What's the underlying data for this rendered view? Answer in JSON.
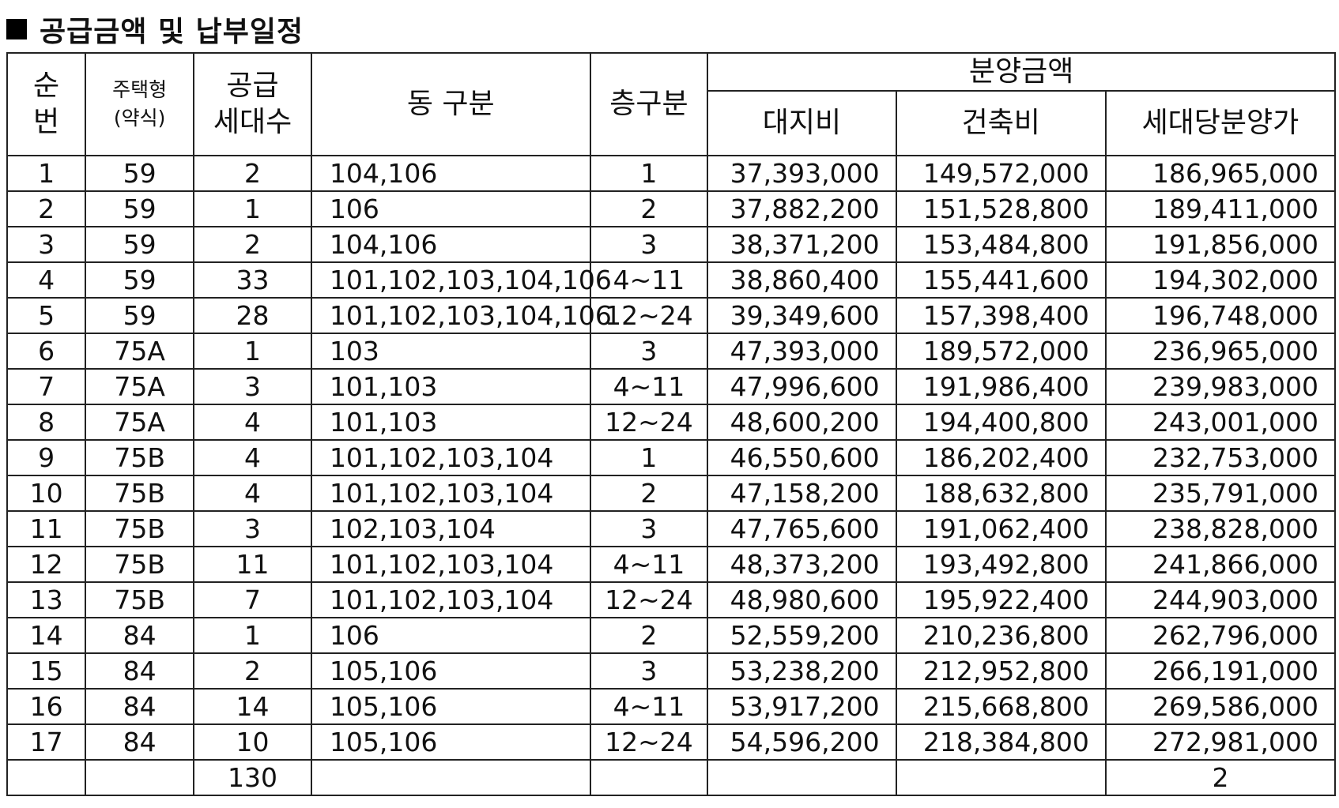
{
  "title": "공급금액 및 납부일정",
  "headers": {
    "seq": [
      "순",
      "번"
    ],
    "type": [
      "주택형",
      "(약식)"
    ],
    "units": [
      "공급",
      "세대수"
    ],
    "building": "동 구분",
    "floor": "층구분",
    "price_group": "분양금액",
    "land": "대지비",
    "construction": "건축비",
    "total": "세대당분양가"
  },
  "rows": [
    {
      "seq": "1",
      "type": "59",
      "units": "2",
      "buildings": "104,106",
      "floor": "1",
      "land": "37,393,000",
      "construction": "149,572,000",
      "total": "186,965,000"
    },
    {
      "seq": "2",
      "type": "59",
      "units": "1",
      "buildings": "106",
      "floor": "2",
      "land": "37,882,200",
      "construction": "151,528,800",
      "total": "189,411,000"
    },
    {
      "seq": "3",
      "type": "59",
      "units": "2",
      "buildings": "104,106",
      "floor": "3",
      "land": "38,371,200",
      "construction": "153,484,800",
      "total": "191,856,000"
    },
    {
      "seq": "4",
      "type": "59",
      "units": "33",
      "buildings": "101,102,103,104,106",
      "floor": "4~11",
      "land": "38,860,400",
      "construction": "155,441,600",
      "total": "194,302,000"
    },
    {
      "seq": "5",
      "type": "59",
      "units": "28",
      "buildings": "101,102,103,104,106",
      "floor": "12~24",
      "land": "39,349,600",
      "construction": "157,398,400",
      "total": "196,748,000"
    },
    {
      "seq": "6",
      "type": "75A",
      "units": "1",
      "buildings": "103",
      "floor": "3",
      "land": "47,393,000",
      "construction": "189,572,000",
      "total": "236,965,000"
    },
    {
      "seq": "7",
      "type": "75A",
      "units": "3",
      "buildings": "101,103",
      "floor": "4~11",
      "land": "47,996,600",
      "construction": "191,986,400",
      "total": "239,983,000"
    },
    {
      "seq": "8",
      "type": "75A",
      "units": "4",
      "buildings": "101,103",
      "floor": "12~24",
      "land": "48,600,200",
      "construction": "194,400,800",
      "total": "243,001,000"
    },
    {
      "seq": "9",
      "type": "75B",
      "units": "4",
      "buildings": "101,102,103,104",
      "floor": "1",
      "land": "46,550,600",
      "construction": "186,202,400",
      "total": "232,753,000"
    },
    {
      "seq": "10",
      "type": "75B",
      "units": "4",
      "buildings": "101,102,103,104",
      "floor": "2",
      "land": "47,158,200",
      "construction": "188,632,800",
      "total": "235,791,000"
    },
    {
      "seq": "11",
      "type": "75B",
      "units": "3",
      "buildings": "102,103,104",
      "floor": "3",
      "land": "47,765,600",
      "construction": "191,062,400",
      "total": "238,828,000"
    },
    {
      "seq": "12",
      "type": "75B",
      "units": "11",
      "buildings": "101,102,103,104",
      "floor": "4~11",
      "land": "48,373,200",
      "construction": "193,492,800",
      "total": "241,866,000"
    },
    {
      "seq": "13",
      "type": "75B",
      "units": "7",
      "buildings": "101,102,103,104",
      "floor": "12~24",
      "land": "48,980,600",
      "construction": "195,922,400",
      "total": "244,903,000"
    },
    {
      "seq": "14",
      "type": "84",
      "units": "1",
      "buildings": "106",
      "floor": "2",
      "land": "52,559,200",
      "construction": "210,236,800",
      "total": "262,796,000"
    },
    {
      "seq": "15",
      "type": "84",
      "units": "2",
      "buildings": "105,106",
      "floor": "3",
      "land": "53,238,200",
      "construction": "212,952,800",
      "total": "266,191,000"
    },
    {
      "seq": "16",
      "type": "84",
      "units": "14",
      "buildings": "105,106",
      "floor": "4~11",
      "land": "53,917,200",
      "construction": "215,668,800",
      "total": "269,586,000"
    },
    {
      "seq": "17",
      "type": "84",
      "units": "10",
      "buildings": "105,106",
      "floor": "12~24",
      "land": "54,596,200",
      "construction": "218,384,800",
      "total": "272,981,000"
    }
  ],
  "footer": {
    "seq": "",
    "type": "",
    "units": "130",
    "buildings": "",
    "floor": "",
    "land": "",
    "construction": "",
    "total": "2"
  }
}
